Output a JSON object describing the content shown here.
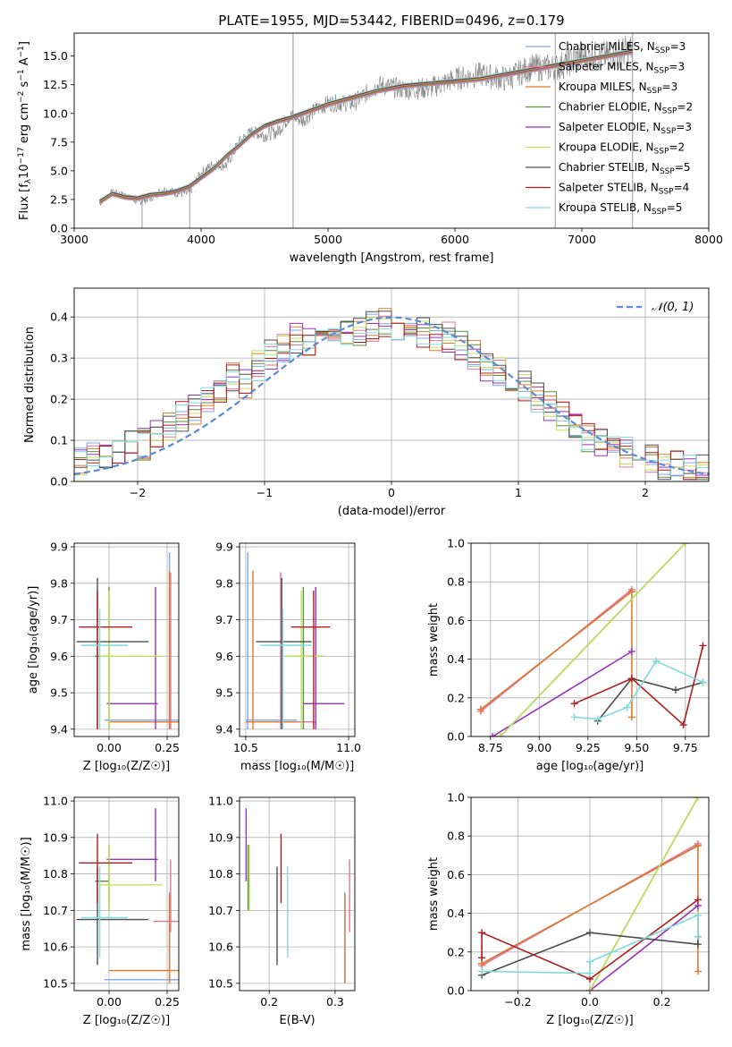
{
  "figure_title": "PLATE=1955, MJD=53442, FIBERID=0496, z=0.179",
  "colors": {
    "chabrier_miles": "#7fa7e6",
    "salpeter_miles": "#e8719a",
    "kroupa_miles": "#e07b2b",
    "chabrier_elodie": "#5c8f3c",
    "salpeter_elodie": "#9b2fbf",
    "kroupa_elodie": "#bfe05a",
    "chabrier_stelib": "#4d4d4d",
    "salpeter_stelib": "#b01c1c",
    "kroupa_stelib": "#7fdbdb",
    "data": "#808080",
    "normal": "#5b8bd6",
    "grid": "#b0b0b0"
  },
  "chart_data": [
    {
      "id": "spectrum",
      "type": "line",
      "title": "PLATE=1955, MJD=53442, FIBERID=0496, z=0.179",
      "xlabel": "wavelength [Angstrom, rest frame]",
      "ylabel_parts": [
        "Flux [f",
        "λ",
        "10",
        "−17",
        " erg cm",
        "−2",
        " s",
        "−1",
        " A",
        "−1",
        "]"
      ],
      "xlim": [
        3000,
        8000
      ],
      "ylim": [
        0,
        17
      ],
      "xticks": [
        "3000",
        "4000",
        "5000",
        "6000",
        "7000",
        "8000"
      ],
      "yticks": [
        "0.0",
        "2.5",
        "5.0",
        "7.5",
        "10.0",
        "12.5",
        "15.0"
      ],
      "grid": false,
      "legend_position": "top-right",
      "x": [
        3200,
        3300,
        3400,
        3500,
        3600,
        3700,
        3800,
        3900,
        4000,
        4100,
        4200,
        4300,
        4400,
        4500,
        4600,
        4700,
        4800,
        4900,
        5000,
        5200,
        5400,
        5600,
        5800,
        6000,
        6200,
        6400,
        6600,
        6800,
        7000,
        7200,
        7400
      ],
      "model_flux": [
        2.3,
        3.0,
        2.7,
        2.6,
        2.9,
        3.0,
        3.2,
        3.6,
        4.4,
        5.2,
        6.3,
        7.2,
        8.2,
        8.9,
        9.3,
        9.6,
        10.0,
        10.4,
        10.8,
        11.4,
        12.0,
        12.4,
        12.6,
        12.8,
        13.0,
        13.4,
        13.8,
        14.2,
        14.6,
        15.0,
        15.4
      ],
      "observed_flux": [
        2.1,
        3.2,
        2.9,
        2.3,
        2.6,
        3.4,
        3.1,
        3.0,
        4.8,
        5.6,
        5.5,
        7.5,
        8.4,
        8.1,
        8.4,
        9.8,
        9.4,
        10.3,
        10.9,
        10.9,
        12.5,
        12.1,
        12.2,
        13.0,
        13.4,
        13.0,
        14.0,
        14.0,
        15.0,
        15.0,
        15.6
      ],
      "series": [
        {
          "key": "chabrier_miles",
          "name": "Chabrier MILES, N",
          "sub": "SSP",
          "tail": "=3"
        },
        {
          "key": "salpeter_miles",
          "name": "Salpeter MILES, N",
          "sub": "SSP",
          "tail": "=3"
        },
        {
          "key": "kroupa_miles",
          "name": "Kroupa MILES, N",
          "sub": "SSP",
          "tail": "=3"
        },
        {
          "key": "chabrier_elodie",
          "name": "Chabrier ELODIE, N",
          "sub": "SSP",
          "tail": "=2"
        },
        {
          "key": "salpeter_elodie",
          "name": "Salpeter ELODIE, N",
          "sub": "SSP",
          "tail": "=3"
        },
        {
          "key": "kroupa_elodie",
          "name": "Kroupa ELODIE, N",
          "sub": "SSP",
          "tail": "=2"
        },
        {
          "key": "chabrier_stelib",
          "name": "Chabrier STELIB, N",
          "sub": "SSP",
          "tail": "=5"
        },
        {
          "key": "salpeter_stelib",
          "name": "Salpeter STELIB, N",
          "sub": "SSP",
          "tail": "=4"
        },
        {
          "key": "kroupa_stelib",
          "name": "Kroupa STELIB, N",
          "sub": "SSP",
          "tail": "=5"
        }
      ]
    },
    {
      "id": "residuals",
      "type": "line",
      "xlabel": "(data-model)/error",
      "ylabel": "Normed distribution",
      "xlim": [
        -2.5,
        2.5
      ],
      "ylim": [
        0,
        0.47
      ],
      "xticks": [
        "−2",
        "−1",
        "0",
        "1",
        "2"
      ],
      "yticks": [
        "0.0",
        "0.1",
        "0.2",
        "0.3",
        "0.4"
      ],
      "grid": true,
      "legend_position": "top-right",
      "normal_label": "𝒩(0, 1)",
      "bin_edges": [
        -2.5,
        -2.4,
        -2.3,
        -2.2,
        -2.1,
        -2.0,
        -1.9,
        -1.8,
        -1.7,
        -1.6,
        -1.5,
        -1.4,
        -1.3,
        -1.2,
        -1.1,
        -1.0,
        -0.9,
        -0.8,
        -0.7,
        -0.6,
        -0.5,
        -0.4,
        -0.3,
        -0.2,
        -0.1,
        0.0,
        0.1,
        0.2,
        0.3,
        0.4,
        0.5,
        0.6,
        0.7,
        0.8,
        0.9,
        1.0,
        1.1,
        1.2,
        1.3,
        1.4,
        1.5,
        1.6,
        1.7,
        1.8,
        1.9,
        2.0,
        2.1,
        2.2,
        2.3,
        2.4,
        2.5
      ],
      "histogram": [
        0.05,
        0.06,
        0.07,
        0.08,
        0.09,
        0.09,
        0.11,
        0.13,
        0.16,
        0.17,
        0.2,
        0.21,
        0.25,
        0.24,
        0.28,
        0.31,
        0.33,
        0.35,
        0.34,
        0.37,
        0.38,
        0.36,
        0.37,
        0.38,
        0.39,
        0.37,
        0.38,
        0.36,
        0.35,
        0.35,
        0.33,
        0.31,
        0.28,
        0.27,
        0.26,
        0.23,
        0.2,
        0.18,
        0.16,
        0.13,
        0.11,
        0.1,
        0.08,
        0.07,
        0.06,
        0.05,
        0.04,
        0.04,
        0.03,
        0.03
      ]
    },
    {
      "id": "z-age",
      "type": "scatter",
      "xlabel": "Z [log₁₀(Z/Z☉)]",
      "ylabel": "age  [log₁₀(age/yr)]",
      "xlim": [
        -0.15,
        0.3
      ],
      "ylim": [
        9.38,
        9.91
      ],
      "xticks": [
        "0.00",
        "0.25"
      ],
      "yticks": [
        "9.4",
        "9.5",
        "9.6",
        "9.7",
        "9.8",
        "9.9"
      ],
      "grid": true
    },
    {
      "id": "mass-age",
      "type": "scatter",
      "xlabel": "mass [log₁₀(M/M☉)]",
      "xlim": [
        10.47,
        11.03
      ],
      "ylim": [
        9.38,
        9.91
      ],
      "xticks": [
        "10.5",
        "11.0"
      ],
      "yticks": [
        "9.4",
        "9.5",
        "9.6",
        "9.7",
        "9.8",
        "9.9"
      ],
      "grid": true
    },
    {
      "id": "age-weight",
      "type": "line",
      "xlabel": "age  [log₁₀(age/yr)]",
      "ylabel": "mass weight",
      "xlim": [
        8.65,
        9.87
      ],
      "ylim": [
        0,
        1.0
      ],
      "xticks": [
        "8.75",
        "9.00",
        "9.25",
        "9.50",
        "9.75"
      ],
      "yticks": [
        "0.0",
        "0.2",
        "0.4",
        "0.6",
        "0.8",
        "1.0"
      ],
      "grid": true
    },
    {
      "id": "z-mass",
      "type": "scatter",
      "xlabel": "Z [log₁₀(Z/Z☉)]",
      "ylabel": "mass [log₁₀(M/M☉)]",
      "xlim": [
        -0.15,
        0.3
      ],
      "ylim": [
        10.48,
        11.01
      ],
      "xticks": [
        "0.00",
        "0.25"
      ],
      "yticks": [
        "10.5",
        "10.6",
        "10.7",
        "10.8",
        "10.9",
        "11.0"
      ],
      "grid": true
    },
    {
      "id": "ebv-mass",
      "type": "scatter",
      "xlabel": "E(B-V)",
      "xlim": [
        0.155,
        0.33
      ],
      "ylim": [
        10.48,
        11.01
      ],
      "xticks": [
        "0.2",
        "0.3"
      ],
      "yticks": [
        "10.5",
        "10.6",
        "10.7",
        "10.8",
        "10.9",
        "11.0"
      ],
      "grid": true
    },
    {
      "id": "z-weight",
      "type": "line",
      "xlabel": "Z [log₁₀(Z/Z☉)]",
      "ylabel": "mass weight",
      "xlim": [
        -0.33,
        0.33
      ],
      "ylim": [
        0,
        1.0
      ],
      "xticks": [
        "−0.2",
        "0.0",
        "0.2"
      ],
      "yticks": [
        "0.0",
        "0.2",
        "0.4",
        "0.6",
        "0.8",
        "1.0"
      ],
      "grid": true
    }
  ],
  "points": [
    {
      "key": "chabrier_miles",
      "Z": 0.26,
      "Zlo": -0.02,
      "Zhi": 0.3,
      "age": 9.425,
      "ageHi": 9.885,
      "mass": 10.51,
      "massLo": 10.5,
      "massHi": 10.75,
      "ebv": 0.315
    },
    {
      "key": "salpeter_miles",
      "Z": 0.265,
      "Zlo": 0.19,
      "Zhi": 0.3,
      "age": 9.42,
      "ageHi": 9.83,
      "mass": 10.67,
      "massLo": 10.64,
      "massHi": 10.84,
      "ebv": 0.322
    },
    {
      "key": "kroupa_miles",
      "Z": 0.26,
      "Zlo": 0.0,
      "Zhi": 0.3,
      "age": 9.42,
      "ageHi": 9.835,
      "mass": 10.535,
      "massLo": 10.5,
      "massHi": 10.745,
      "ebv": 0.315
    },
    {
      "key": "chabrier_elodie",
      "Z": 0.0,
      "Zlo": -0.06,
      "Zhi": 0.0,
      "age": 9.6,
      "ageHi": 9.79,
      "mass": 10.78,
      "massLo": 10.7,
      "massHi": 10.88,
      "ebv": 0.168
    },
    {
      "key": "salpeter_elodie",
      "Z": 0.2,
      "Zlo": -0.01,
      "Zhi": 0.21,
      "age": 9.47,
      "ageHi": 9.79,
      "mass": 10.84,
      "massLo": 10.78,
      "massHi": 10.98,
      "ebv": 0.165
    },
    {
      "key": "kroupa_elodie",
      "Z": 0.0,
      "Zlo": -0.04,
      "Zhi": 0.23,
      "age": 9.6,
      "ageHi": 9.78,
      "mass": 10.77,
      "massLo": 10.7,
      "massHi": 10.88,
      "ebv": 0.17
    },
    {
      "key": "chabrier_stelib",
      "Z": -0.05,
      "Zlo": -0.14,
      "Zhi": 0.17,
      "age": 9.64,
      "ageHi": 9.815,
      "mass": 10.675,
      "massLo": 10.55,
      "massHi": 10.82,
      "ebv": 0.212
    },
    {
      "key": "salpeter_stelib",
      "Z": -0.05,
      "Zlo": -0.13,
      "Zhi": 0.1,
      "age": 9.68,
      "ageHi": 9.78,
      "mass": 10.83,
      "massLo": 10.72,
      "massHi": 10.91,
      "ebv": 0.218
    },
    {
      "key": "kroupa_stelib",
      "Z": -0.04,
      "Zlo": -0.12,
      "Zhi": 0.08,
      "age": 9.63,
      "ageHi": 9.73,
      "mass": 10.68,
      "massLo": 10.57,
      "massHi": 10.82,
      "ebv": 0.228
    }
  ],
  "weights": [
    {
      "key": "chabrier_miles",
      "age": [
        8.7,
        9.475
      ],
      "Z": [
        -0.3,
        0.3
      ],
      "w": [
        0.14,
        0.75
      ]
    },
    {
      "key": "salpeter_miles",
      "age": [
        8.7,
        9.475
      ],
      "Z": [
        -0.3,
        0.3
      ],
      "w": [
        0.13,
        0.76
      ]
    },
    {
      "key": "kroupa_miles",
      "age": [
        8.7,
        9.475,
        9.475
      ],
      "Z": [
        -0.3,
        0.3,
        0.3
      ],
      "w": [
        0.14,
        0.75,
        0.1
      ]
    },
    {
      "key": "chabrier_elodie",
      "age": [
        8.8,
        9.75
      ],
      "Z": [
        0.0,
        0.3
      ],
      "w": [
        0.0,
        1.0
      ]
    },
    {
      "key": "salpeter_elodie",
      "age": [
        8.76,
        9.475
      ],
      "Z": [
        0.0,
        0.3
      ],
      "w": [
        0.0,
        0.44
      ]
    },
    {
      "key": "kroupa_elodie",
      "age": [
        8.8,
        9.75
      ],
      "Z": [
        0.0,
        0.3
      ],
      "w": [
        0.0,
        1.0
      ]
    },
    {
      "key": "chabrier_stelib",
      "age": [
        9.3,
        9.475,
        9.7,
        9.84
      ],
      "Z": [
        -0.3,
        0.0,
        0.3,
        0.3
      ],
      "w": [
        0.08,
        0.3,
        0.24,
        0.28
      ]
    },
    {
      "key": "salpeter_stelib",
      "age": [
        9.18,
        9.475,
        9.74,
        9.84
      ],
      "Z": [
        -0.3,
        -0.3,
        0.0,
        0.3
      ],
      "w": [
        0.17,
        0.3,
        0.06,
        0.47
      ]
    },
    {
      "key": "kroupa_stelib",
      "age": [
        9.18,
        9.3,
        9.45,
        9.6,
        9.84
      ],
      "Z": [
        -0.3,
        0.0,
        0.0,
        0.3,
        0.3
      ],
      "w": [
        0.1,
        0.09,
        0.15,
        0.39,
        0.28
      ]
    }
  ]
}
